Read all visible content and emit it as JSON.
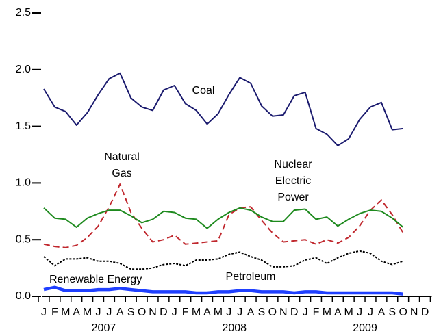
{
  "chart_data": {
    "type": "line",
    "categories": [
      "J",
      "F",
      "M",
      "A",
      "M",
      "J",
      "J",
      "A",
      "S",
      "O",
      "N",
      "D",
      "J",
      "F",
      "M",
      "A",
      "M",
      "J",
      "J",
      "A",
      "S",
      "O",
      "N",
      "D",
      "J",
      "F",
      "M",
      "A",
      "M",
      "J",
      "J",
      "A",
      "S",
      "O",
      "N",
      "D"
    ],
    "year_labels": [
      "2007",
      "2008",
      "2009"
    ],
    "ylim": [
      0,
      2.5
    ],
    "yticks": [
      {
        "value": 0,
        "label": "0.0"
      },
      {
        "value": 0.5,
        "label": "0.5"
      },
      {
        "value": 1,
        "label": "1.0"
      },
      {
        "value": 1.5,
        "label": "1.5"
      },
      {
        "value": 2,
        "label": "2.0"
      },
      {
        "value": 2.5,
        "label": "2.5"
      }
    ],
    "series": [
      {
        "name": "Coal",
        "color": "#1a1a6e",
        "style": "solid",
        "values": [
          1.83,
          1.67,
          1.63,
          1.51,
          1.62,
          1.78,
          1.92,
          1.97,
          1.75,
          1.67,
          1.64,
          1.82,
          1.86,
          1.7,
          1.64,
          1.52,
          1.61,
          1.78,
          1.93,
          1.88,
          1.68,
          1.59,
          1.6,
          1.77,
          1.8,
          1.48,
          1.43,
          1.33,
          1.39,
          1.56,
          1.67,
          1.71,
          1.47,
          1.48,
          null,
          null
        ]
      },
      {
        "name": "Natural Gas",
        "color": "#c0272d",
        "style": "dashed",
        "values": [
          0.46,
          0.44,
          0.43,
          0.45,
          0.52,
          0.62,
          0.79,
          0.99,
          0.74,
          0.6,
          0.48,
          0.5,
          0.54,
          0.46,
          0.47,
          0.48,
          0.49,
          0.72,
          0.78,
          0.79,
          0.67,
          0.56,
          0.48,
          0.49,
          0.5,
          0.46,
          0.5,
          0.47,
          0.52,
          0.62,
          0.76,
          0.85,
          0.72,
          0.56,
          null,
          null
        ]
      },
      {
        "name": "Nuclear Electric Power",
        "color": "#1e8a1e",
        "style": "solid",
        "values": [
          0.78,
          0.69,
          0.68,
          0.61,
          0.69,
          0.73,
          0.76,
          0.76,
          0.71,
          0.65,
          0.68,
          0.75,
          0.74,
          0.69,
          0.68,
          0.6,
          0.68,
          0.74,
          0.78,
          0.76,
          0.7,
          0.66,
          0.66,
          0.76,
          0.77,
          0.68,
          0.7,
          0.62,
          0.68,
          0.73,
          0.76,
          0.75,
          0.69,
          0.61,
          null,
          null
        ]
      },
      {
        "name": "Renewable Energy",
        "color": "#000000",
        "style": "dotted",
        "values": [
          0.35,
          0.27,
          0.33,
          0.33,
          0.34,
          0.31,
          0.31,
          0.29,
          0.24,
          0.24,
          0.25,
          0.28,
          0.29,
          0.27,
          0.32,
          0.32,
          0.33,
          0.37,
          0.39,
          0.35,
          0.32,
          0.26,
          0.26,
          0.27,
          0.32,
          0.34,
          0.29,
          0.34,
          0.38,
          0.4,
          0.38,
          0.31,
          0.28,
          0.31,
          null,
          null
        ]
      },
      {
        "name": "Petroleum",
        "color": "#1f3fff",
        "style": "thick",
        "values": [
          0.06,
          0.08,
          0.05,
          0.05,
          0.05,
          0.06,
          0.06,
          0.07,
          0.06,
          0.05,
          0.04,
          0.04,
          0.04,
          0.04,
          0.03,
          0.03,
          0.04,
          0.04,
          0.05,
          0.05,
          0.04,
          0.04,
          0.04,
          0.03,
          0.04,
          0.04,
          0.03,
          0.03,
          0.03,
          0.03,
          0.03,
          0.03,
          0.03,
          0.02,
          null,
          null
        ]
      }
    ]
  }
}
